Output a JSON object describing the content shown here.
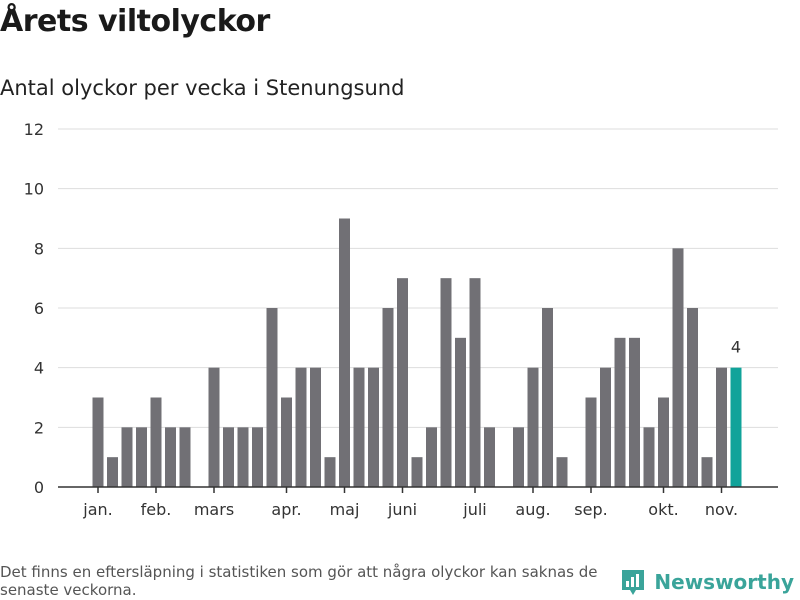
{
  "header": {
    "title": "Årets viltolyckor",
    "subtitle": "Antal olyckor per vecka i Stenungsund"
  },
  "footer": {
    "note": "Det finns en eftersläpning i statistiken som gör att några olyckor kan saknas de senaste veckorna.",
    "brand": "Newsworthy"
  },
  "colors": {
    "bar": "#717075",
    "highlight": "#11a39a",
    "grid": "#dddddd",
    "axis": "#333333",
    "brand": "#3aa49a"
  },
  "chart_data": {
    "type": "bar",
    "title": "Årets viltolyckor",
    "subtitle": "Antal olyckor per vecka i Stenungsund",
    "ylim": [
      0,
      12
    ],
    "yticks": [
      0,
      2,
      4,
      6,
      8,
      10,
      12
    ],
    "grid": true,
    "month_labels": [
      {
        "label": "jan.",
        "week": 1
      },
      {
        "label": "feb.",
        "week": 5
      },
      {
        "label": "mars",
        "week": 9
      },
      {
        "label": "apr.",
        "week": 14
      },
      {
        "label": "maj",
        "week": 18
      },
      {
        "label": "juni",
        "week": 22
      },
      {
        "label": "juli",
        "week": 27
      },
      {
        "label": "aug.",
        "week": 31
      },
      {
        "label": "sep.",
        "week": 35
      },
      {
        "label": "okt.",
        "week": 40
      },
      {
        "label": "nov.",
        "week": 44
      }
    ],
    "weeks": [
      1,
      2,
      3,
      4,
      5,
      6,
      7,
      8,
      9,
      10,
      11,
      12,
      13,
      14,
      15,
      16,
      17,
      18,
      19,
      20,
      21,
      22,
      23,
      24,
      25,
      26,
      27,
      28,
      29,
      30,
      31,
      32,
      33,
      34,
      35,
      36,
      37,
      38,
      39,
      40,
      41,
      42,
      43,
      44,
      45
    ],
    "values": [
      3,
      1,
      2,
      2,
      3,
      2,
      2,
      0,
      4,
      2,
      2,
      2,
      6,
      3,
      4,
      4,
      1,
      9,
      4,
      4,
      6,
      7,
      1,
      2,
      7,
      5,
      7,
      2,
      0,
      2,
      4,
      6,
      1,
      0,
      3,
      4,
      5,
      5,
      2,
      3,
      8,
      6,
      1,
      4,
      4
    ],
    "highlight_index": 44,
    "highlight_label": "4"
  }
}
